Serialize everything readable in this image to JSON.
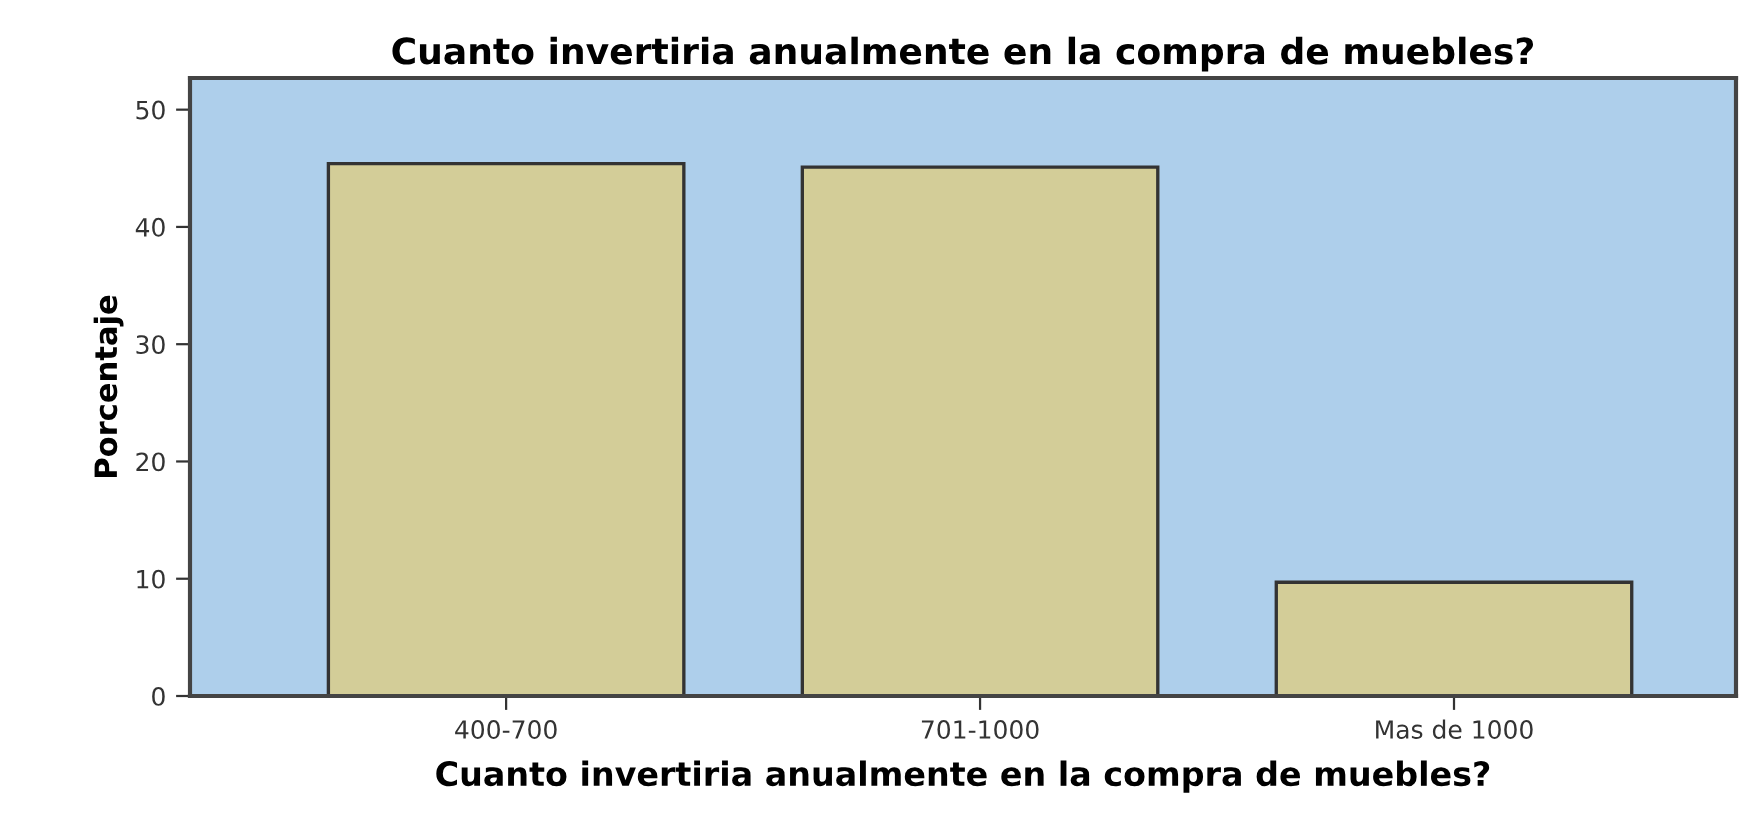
{
  "chart_data": {
    "type": "bar",
    "title": "Cuanto invertiria anualmente en la compra de muebles?",
    "xlabel": "Cuanto invertiria anualmente en la compra de muebles?",
    "ylabel": "Porcentaje",
    "categories": [
      "400-700",
      "701-1000",
      "Mas de 1000"
    ],
    "values": [
      45.4,
      45.1,
      9.7
    ],
    "color": "#d3cd98",
    "ylim": [
      0,
      52.7
    ],
    "yticks": [
      0,
      10,
      20,
      30,
      40,
      50
    ],
    "grid": false,
    "legend": false
  }
}
